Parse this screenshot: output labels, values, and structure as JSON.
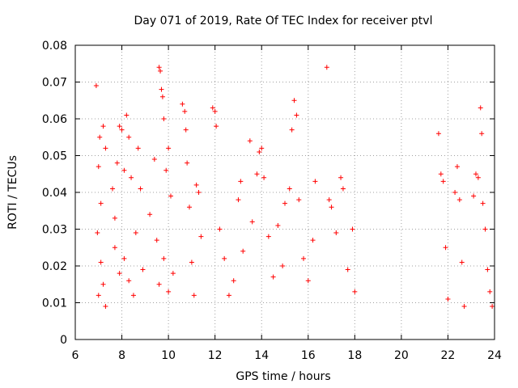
{
  "chart_data": {
    "type": "scatter",
    "title": "Day 071 of 2019, Rate Of TEC Index for receiver ptvl",
    "xlabel": "GPS time / hours",
    "ylabel": "ROTI / TECUs",
    "xlim": [
      6,
      24
    ],
    "ylim": [
      0,
      0.08
    ],
    "xticks": [
      6,
      8,
      10,
      12,
      14,
      16,
      18,
      20,
      22,
      24
    ],
    "yticks": [
      0,
      0.01,
      0.02,
      0.03,
      0.04,
      0.05,
      0.06,
      0.07,
      0.08
    ],
    "xtick_labels": [
      "6",
      "8",
      "10",
      "12",
      "14",
      "16",
      "18",
      "20",
      "22",
      "24"
    ],
    "ytick_labels": [
      "0",
      "0.01",
      "0.02",
      "0.03",
      "0.04",
      "0.05",
      "0.06",
      "0.07",
      "0.08"
    ],
    "grid": true,
    "marker": "+",
    "color": "#ff0000",
    "series": [
      {
        "name": "ROTI",
        "points": [
          [
            6.9,
            0.069
          ],
          [
            7.0,
            0.047
          ],
          [
            7.05,
            0.055
          ],
          [
            7.1,
            0.037
          ],
          [
            7.2,
            0.058
          ],
          [
            7.3,
            0.052
          ],
          [
            6.95,
            0.029
          ],
          [
            7.1,
            0.021
          ],
          [
            7.2,
            0.015
          ],
          [
            7.0,
            0.012
          ],
          [
            7.3,
            0.009
          ],
          [
            7.6,
            0.041
          ],
          [
            7.7,
            0.033
          ],
          [
            7.8,
            0.048
          ],
          [
            7.9,
            0.058
          ],
          [
            8.0,
            0.057
          ],
          [
            8.1,
            0.046
          ],
          [
            8.2,
            0.061
          ],
          [
            8.3,
            0.055
          ],
          [
            8.4,
            0.044
          ],
          [
            7.7,
            0.025
          ],
          [
            7.9,
            0.018
          ],
          [
            8.1,
            0.022
          ],
          [
            8.3,
            0.016
          ],
          [
            8.5,
            0.012
          ],
          [
            8.6,
            0.029
          ],
          [
            8.7,
            0.052
          ],
          [
            8.8,
            0.041
          ],
          [
            8.9,
            0.019
          ],
          [
            9.2,
            0.034
          ],
          [
            9.4,
            0.049
          ],
          [
            9.5,
            0.027
          ],
          [
            9.6,
            0.074
          ],
          [
            9.65,
            0.073
          ],
          [
            9.7,
            0.068
          ],
          [
            9.75,
            0.066
          ],
          [
            9.8,
            0.06
          ],
          [
            9.9,
            0.046
          ],
          [
            10.0,
            0.052
          ],
          [
            10.1,
            0.039
          ],
          [
            9.6,
            0.015
          ],
          [
            9.8,
            0.022
          ],
          [
            10.0,
            0.013
          ],
          [
            10.2,
            0.018
          ],
          [
            10.6,
            0.064
          ],
          [
            10.7,
            0.062
          ],
          [
            10.75,
            0.057
          ],
          [
            10.8,
            0.048
          ],
          [
            10.9,
            0.036
          ],
          [
            11.0,
            0.021
          ],
          [
            11.2,
            0.042
          ],
          [
            11.3,
            0.04
          ],
          [
            11.4,
            0.028
          ],
          [
            11.1,
            0.012
          ],
          [
            11.9,
            0.063
          ],
          [
            12.0,
            0.062
          ],
          [
            12.05,
            0.058
          ],
          [
            12.2,
            0.03
          ],
          [
            12.4,
            0.022
          ],
          [
            12.6,
            0.012
          ],
          [
            12.8,
            0.016
          ],
          [
            13.0,
            0.038
          ],
          [
            13.1,
            0.043
          ],
          [
            13.2,
            0.024
          ],
          [
            13.5,
            0.054
          ],
          [
            13.6,
            0.032
          ],
          [
            13.8,
            0.045
          ],
          [
            13.9,
            0.051
          ],
          [
            14.0,
            0.052
          ],
          [
            14.1,
            0.044
          ],
          [
            14.3,
            0.028
          ],
          [
            14.5,
            0.017
          ],
          [
            14.7,
            0.031
          ],
          [
            14.9,
            0.02
          ],
          [
            15.0,
            0.037
          ],
          [
            15.2,
            0.041
          ],
          [
            15.3,
            0.057
          ],
          [
            15.4,
            0.065
          ],
          [
            15.5,
            0.061
          ],
          [
            15.6,
            0.038
          ],
          [
            15.8,
            0.022
          ],
          [
            16.0,
            0.016
          ],
          [
            16.2,
            0.027
          ],
          [
            16.3,
            0.043
          ],
          [
            16.8,
            0.074
          ],
          [
            16.9,
            0.038
          ],
          [
            17.0,
            0.036
          ],
          [
            17.2,
            0.029
          ],
          [
            17.4,
            0.044
          ],
          [
            17.5,
            0.041
          ],
          [
            17.7,
            0.019
          ],
          [
            17.9,
            0.03
          ],
          [
            18.0,
            0.013
          ],
          [
            21.6,
            0.056
          ],
          [
            21.7,
            0.045
          ],
          [
            21.8,
            0.043
          ],
          [
            21.9,
            0.025
          ],
          [
            22.0,
            0.011
          ],
          [
            22.3,
            0.04
          ],
          [
            22.4,
            0.047
          ],
          [
            22.5,
            0.038
          ],
          [
            22.6,
            0.021
          ],
          [
            22.7,
            0.009
          ],
          [
            23.1,
            0.039
          ],
          [
            23.2,
            0.045
          ],
          [
            23.3,
            0.044
          ],
          [
            23.4,
            0.063
          ],
          [
            23.45,
            0.056
          ],
          [
            23.5,
            0.037
          ],
          [
            23.6,
            0.03
          ],
          [
            23.7,
            0.019
          ],
          [
            23.8,
            0.013
          ],
          [
            23.9,
            0.009
          ]
        ]
      }
    ]
  }
}
